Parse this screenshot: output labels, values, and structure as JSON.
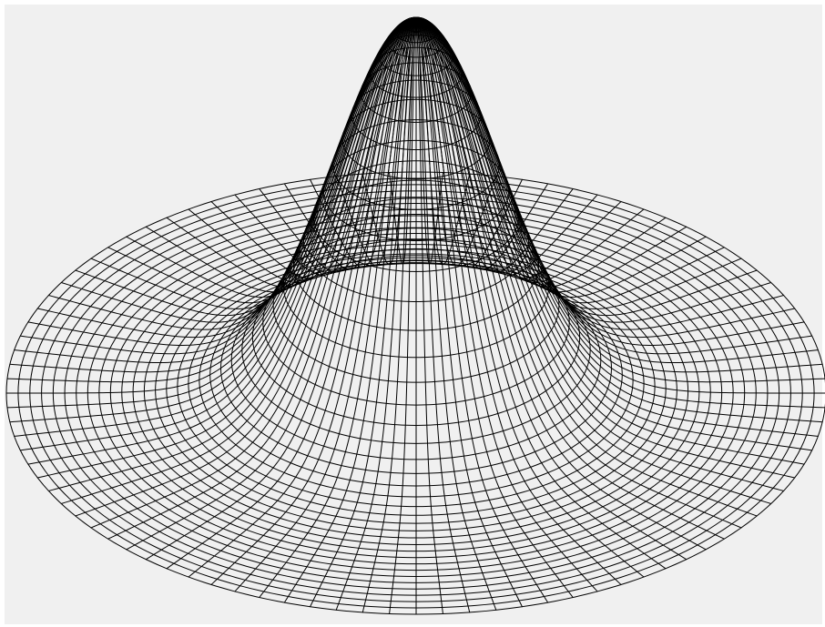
{
  "figure": {
    "description_type": "wireframe-3d-surface",
    "surface": "gaussian-bump",
    "background_color": "#f0f0f0",
    "frame_color": "#ffffff",
    "line_color": "#000000",
    "radial_lines": 96,
    "rings": 40
  }
}
